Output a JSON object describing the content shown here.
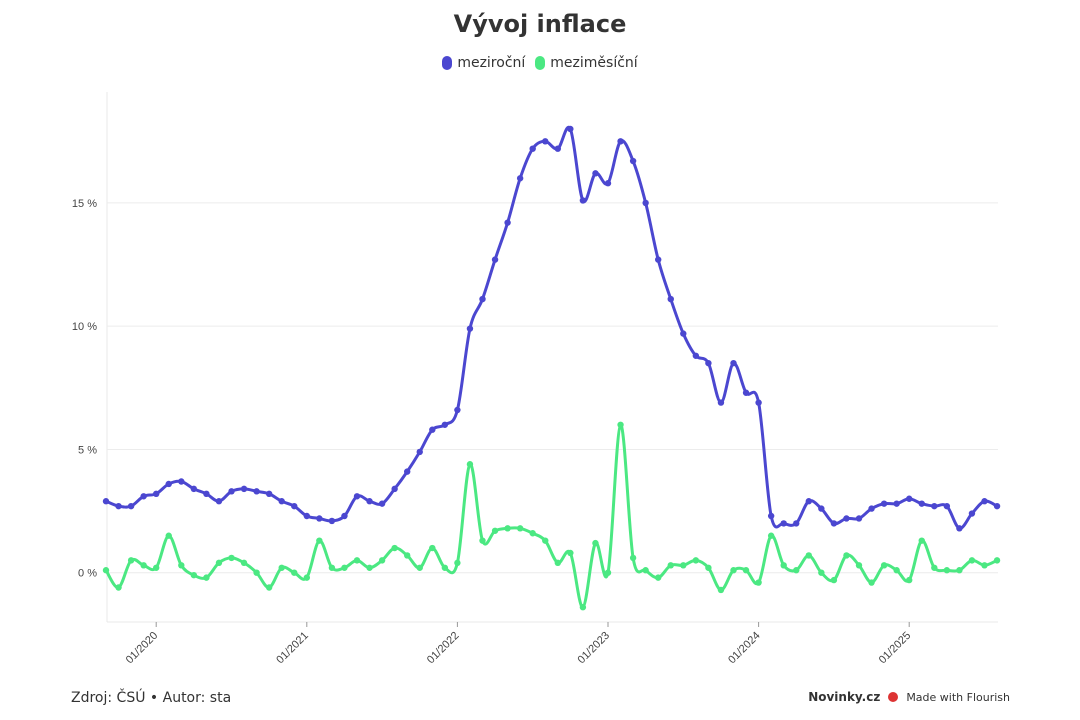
{
  "chart_data": {
    "type": "line",
    "title": "Vývoj inflace",
    "xlabel": "",
    "ylabel": "",
    "ylim": [
      -2,
      19.5
    ],
    "y_ticks": [
      0,
      5,
      10,
      15
    ],
    "y_tick_labels": [
      "0 %",
      "5 %",
      "10 %",
      "15 %"
    ],
    "x_tick_labels": [
      "01/2020",
      "01/2021",
      "01/2022",
      "01/2023",
      "01/2024",
      "01/2025"
    ],
    "x_start": "09/2019",
    "x_end": "07/2025",
    "legend_position": "top-center",
    "grid": true,
    "series": [
      {
        "name": "meziroční",
        "color": "#4b47d0",
        "values": [
          2.9,
          2.7,
          2.7,
          3.1,
          3.2,
          3.6,
          3.7,
          3.4,
          3.2,
          2.9,
          3.3,
          3.4,
          3.3,
          3.2,
          2.9,
          2.7,
          2.3,
          2.2,
          2.1,
          2.3,
          3.1,
          2.9,
          2.8,
          3.4,
          4.1,
          4.9,
          5.8,
          6.0,
          6.6,
          9.9,
          11.1,
          12.7,
          14.2,
          16.0,
          17.2,
          17.5,
          17.2,
          18.0,
          15.1,
          16.2,
          15.8,
          17.5,
          16.7,
          15.0,
          12.7,
          11.1,
          9.7,
          8.8,
          8.5,
          6.9,
          8.5,
          7.3,
          6.9,
          2.3,
          2.0,
          2.0,
          2.9,
          2.6,
          2.0,
          2.2,
          2.2,
          2.6,
          2.8,
          2.8,
          3.0,
          2.8,
          2.7,
          2.7,
          1.8,
          2.4,
          2.9,
          2.7
        ]
      },
      {
        "name": "meziměsíční",
        "color": "#4be882",
        "values": [
          0.1,
          -0.6,
          0.5,
          0.3,
          0.2,
          1.5,
          0.3,
          -0.1,
          -0.2,
          0.4,
          0.6,
          0.4,
          0.0,
          -0.6,
          0.2,
          0.0,
          -0.2,
          1.3,
          0.2,
          0.2,
          0.5,
          0.2,
          0.5,
          1.0,
          0.7,
          0.2,
          1.0,
          0.2,
          0.4,
          4.4,
          1.3,
          1.7,
          1.8,
          1.8,
          1.6,
          1.3,
          0.4,
          0.8,
          -1.4,
          1.2,
          0.0,
          6.0,
          0.6,
          0.1,
          -0.2,
          0.3,
          0.3,
          0.5,
          0.2,
          -0.7,
          0.1,
          0.1,
          -0.4,
          1.5,
          0.3,
          0.1,
          0.7,
          0.0,
          -0.3,
          0.7,
          0.3,
          -0.4,
          0.3,
          0.1,
          -0.3,
          1.3,
          0.2,
          0.1,
          0.1,
          0.5,
          0.3,
          0.5
        ]
      }
    ]
  },
  "legend": {
    "item1": "meziroční",
    "item2": "meziměsíční"
  },
  "footer": {
    "source": "Zdroj: ČSÚ • Autor: sta",
    "brand": "Novinky.cz",
    "made_with": "Made with Flourish"
  }
}
